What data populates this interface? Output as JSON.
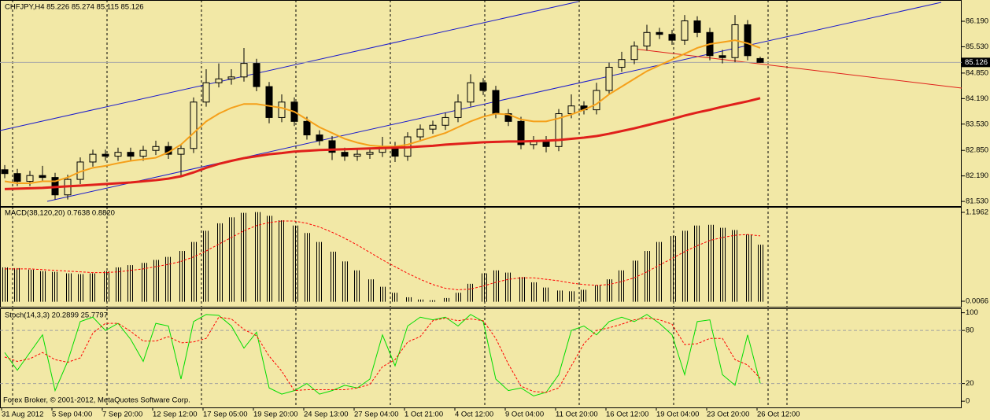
{
  "chart_data": [
    {
      "type": "candlestick",
      "title": "CHFJPY,H4  85.226 85.274 85.115 85.126",
      "credit": "Forex Broker, © 2001-2012, MetaQuotes Software Corp.",
      "categories": [
        "31 Aug 2012",
        null,
        null,
        null,
        "5 Sep 04:00",
        null,
        null,
        null,
        "7 Sep 20:00",
        null,
        null,
        null,
        "12 Sep 12:00",
        null,
        null,
        null,
        "17 Sep 05:00",
        null,
        null,
        null,
        "19 Sep 20:00",
        null,
        null,
        null,
        "24 Sep 13:00",
        null,
        null,
        null,
        "27 Sep 04:00",
        null,
        null,
        null,
        "1 Oct 21:00",
        null,
        null,
        null,
        "4 Oct 12:00",
        null,
        null,
        null,
        "9 Oct 04:00",
        null,
        null,
        null,
        "11 Oct 20:00",
        null,
        null,
        null,
        "16 Oct 12:00",
        null,
        null,
        null,
        "19 Oct 04:00",
        null,
        null,
        null,
        "23 Oct 20:00",
        null,
        null,
        null,
        "26 Oct 12:00"
      ],
      "open": [
        82.35,
        82.25,
        82.05,
        82.2,
        82.15,
        81.7,
        82.1,
        82.55,
        82.75,
        82.7,
        82.8,
        82.7,
        82.85,
        82.95,
        82.75,
        82.9,
        84.1,
        84.6,
        84.7,
        84.75,
        85.1,
        84.5,
        83.7,
        84.1,
        83.6,
        83.25,
        83.1,
        82.8,
        82.7,
        82.75,
        82.8,
        82.95,
        82.7,
        83.2,
        83.4,
        83.5,
        83.7,
        84.1,
        84.6,
        84.4,
        83.8,
        83.6,
        83.0,
        83.1,
        82.95,
        83.8,
        84.0,
        83.9,
        84.4,
        85.0,
        85.2,
        85.55,
        85.9,
        85.85,
        85.7,
        86.2,
        85.9,
        85.3,
        85.25,
        86.1,
        85.226
      ],
      "high": [
        82.47,
        82.37,
        82.32,
        82.45,
        82.27,
        82.22,
        82.67,
        82.87,
        82.87,
        82.92,
        82.92,
        82.97,
        83.1,
        83.07,
        83.02,
        84.22,
        84.95,
        85.1,
        84.95,
        85.5,
        85.22,
        84.62,
        84.3,
        84.22,
        83.72,
        83.37,
        83.22,
        82.92,
        82.87,
        82.92,
        83.2,
        83.07,
        83.32,
        83.52,
        83.62,
        83.82,
        84.3,
        84.82,
        84.72,
        84.52,
        83.92,
        83.72,
        83.22,
        83.22,
        83.92,
        84.3,
        84.12,
        84.6,
        85.12,
        85.4,
        85.67,
        86.1,
        86.02,
        85.97,
        86.35,
        86.32,
        86.02,
        85.45,
        86.35,
        86.22,
        85.274
      ],
      "low": [
        82.13,
        81.93,
        81.93,
        82.03,
        81.58,
        81.58,
        81.98,
        82.43,
        82.58,
        82.58,
        82.58,
        82.58,
        82.73,
        82.63,
        82.2,
        82.78,
        83.98,
        84.48,
        84.55,
        84.63,
        84.38,
        83.55,
        83.58,
        83.48,
        83.13,
        82.98,
        82.6,
        82.58,
        82.58,
        82.63,
        82.68,
        82.55,
        82.58,
        83.08,
        83.28,
        83.38,
        83.58,
        83.98,
        84.28,
        83.68,
        83.48,
        82.88,
        82.88,
        82.8,
        82.83,
        83.68,
        83.78,
        83.78,
        84.28,
        84.88,
        85.08,
        85.43,
        85.73,
        85.58,
        85.58,
        85.78,
        85.18,
        85.1,
        85.13,
        85.18,
        85.115
      ],
      "close": [
        82.25,
        82.05,
        82.2,
        82.15,
        81.7,
        82.1,
        82.55,
        82.75,
        82.7,
        82.8,
        82.7,
        82.85,
        82.95,
        82.75,
        82.9,
        84.1,
        84.6,
        84.7,
        84.75,
        85.1,
        84.5,
        83.7,
        84.1,
        83.6,
        83.25,
        83.1,
        82.8,
        82.7,
        82.75,
        82.8,
        82.95,
        82.7,
        83.2,
        83.4,
        83.5,
        83.7,
        84.1,
        84.6,
        84.4,
        83.8,
        83.6,
        83.0,
        83.1,
        82.95,
        83.8,
        84.0,
        83.9,
        84.4,
        85.0,
        85.2,
        85.55,
        85.9,
        85.85,
        85.7,
        86.2,
        85.9,
        85.3,
        85.25,
        86.1,
        85.3,
        85.126
      ],
      "overlays": [
        {
          "color": "#f5a01a",
          "values": [
            82.05,
            82.0,
            82.0,
            82.05,
            82.05,
            82.15,
            82.3,
            82.4,
            82.45,
            82.52,
            82.58,
            82.62,
            82.66,
            82.8,
            83.0,
            83.3,
            83.6,
            83.8,
            83.95,
            84.05,
            84.05,
            84.0,
            83.95,
            83.85,
            83.65,
            83.45,
            83.3,
            83.15,
            83.05,
            82.98,
            82.95,
            82.95,
            83.0,
            83.1,
            83.2,
            83.3,
            83.45,
            83.6,
            83.72,
            83.8,
            83.78,
            83.65,
            83.6,
            83.6,
            83.68,
            83.78,
            83.9,
            84.05,
            84.3,
            84.5,
            84.7,
            84.9,
            85.05,
            85.2,
            85.35,
            85.5,
            85.6,
            85.65,
            85.7,
            85.62,
            85.5
          ]
        },
        {
          "color": "#e0201b",
          "values": [
            81.85,
            81.86,
            81.87,
            81.88,
            81.9,
            81.92,
            81.94,
            81.96,
            81.98,
            82.0,
            82.02,
            82.05,
            82.08,
            82.12,
            82.18,
            82.28,
            82.4,
            82.5,
            82.58,
            82.65,
            82.7,
            82.75,
            82.78,
            82.82,
            82.84,
            82.86,
            82.87,
            82.88,
            82.89,
            82.9,
            82.91,
            82.92,
            82.93,
            82.95,
            82.97,
            83.0,
            83.02,
            83.04,
            83.06,
            83.07,
            83.08,
            83.08,
            83.09,
            83.1,
            83.12,
            83.15,
            83.18,
            83.22,
            83.28,
            83.35,
            83.42,
            83.5,
            83.58,
            83.66,
            83.75,
            83.83,
            83.9,
            83.98,
            84.05,
            84.12,
            84.2
          ]
        }
      ],
      "last_price": 85.126,
      "ylim": [
        81.41,
        86.74
      ],
      "yticks": [
        {
          "value": 86.19,
          "label": "86.190"
        },
        {
          "value": 85.53,
          "label": "85.530"
        },
        {
          "value": 84.85,
          "label": "84.850"
        },
        {
          "value": 84.19,
          "label": "84.190"
        },
        {
          "value": 83.53,
          "label": "83.530"
        },
        {
          "value": 82.85,
          "label": "82.850"
        },
        {
          "value": 82.19,
          "label": "82.190"
        },
        {
          "value": 81.53,
          "label": "81.530"
        }
      ],
      "grid": true
    },
    {
      "type": "macd",
      "title": "MACD(38,120,20) 0.7638 0.8820",
      "series": [
        {
          "color": "#000000",
          "values": [
            0.46,
            0.45,
            0.43,
            0.41,
            0.4,
            0.38,
            0.37,
            0.38,
            0.41,
            0.46,
            0.49,
            0.52,
            0.56,
            0.6,
            0.68,
            0.8,
            0.95,
            1.05,
            1.13,
            1.19,
            1.2,
            1.15,
            1.09,
            1.02,
            0.92,
            0.8,
            0.67,
            0.54,
            0.42,
            0.3,
            0.2,
            0.12,
            0.06,
            0.03,
            0.02,
            0.05,
            0.12,
            0.24,
            0.38,
            0.42,
            0.39,
            0.33,
            0.26,
            0.19,
            0.15,
            0.14,
            0.16,
            0.22,
            0.3,
            0.42,
            0.55,
            0.68,
            0.8,
            0.88,
            0.95,
            1.02,
            1.03,
            0.99,
            0.96,
            0.9,
            0.7638
          ]
        },
        {
          "color": "#ff0000",
          "values": [
            0.44,
            0.44,
            0.44,
            0.43,
            0.42,
            0.41,
            0.4,
            0.39,
            0.39,
            0.4,
            0.42,
            0.44,
            0.47,
            0.5,
            0.54,
            0.6,
            0.68,
            0.77,
            0.86,
            0.95,
            1.02,
            1.06,
            1.08,
            1.08,
            1.05,
            1.0,
            0.93,
            0.85,
            0.76,
            0.66,
            0.56,
            0.47,
            0.38,
            0.3,
            0.23,
            0.18,
            0.16,
            0.17,
            0.21,
            0.26,
            0.3,
            0.32,
            0.32,
            0.3,
            0.28,
            0.25,
            0.23,
            0.22,
            0.23,
            0.27,
            0.32,
            0.4,
            0.49,
            0.58,
            0.67,
            0.75,
            0.82,
            0.86,
            0.89,
            0.9,
            0.882
          ]
        }
      ],
      "ylim": [
        -0.067,
        1.27
      ],
      "yticks": [
        1.1962,
        0.0066
      ]
    },
    {
      "type": "stochastic",
      "title": "Stoch(14,3,3) 20.2899 25.7797",
      "series": [
        {
          "color": "#00dd00",
          "values": [
            55,
            35,
            55,
            75,
            12,
            45,
            90,
            95,
            80,
            88,
            70,
            45,
            88,
            85,
            25,
            90,
            98,
            97,
            85,
            60,
            78,
            15,
            8,
            12,
            20,
            8,
            12,
            18,
            15,
            25,
            75,
            40,
            85,
            95,
            92,
            95,
            85,
            98,
            90,
            25,
            12,
            15,
            6,
            10,
            30,
            80,
            85,
            75,
            90,
            95,
            90,
            98,
            88,
            75,
            30,
            90,
            92,
            30,
            18,
            75,
            20.2899
          ]
        },
        {
          "color": "#ff0000",
          "values": [
            50,
            45,
            48,
            55,
            47,
            44,
            49,
            77,
            88,
            88,
            79,
            68,
            68,
            73,
            66,
            67,
            71,
            95,
            93,
            81,
            74,
            51,
            34,
            12,
            13,
            13,
            13,
            13,
            15,
            19,
            39,
            47,
            67,
            73,
            91,
            94,
            91,
            93,
            91,
            71,
            42,
            17,
            11,
            10,
            15,
            40,
            65,
            80,
            83,
            87,
            92,
            94,
            92,
            87,
            64,
            65,
            71,
            71,
            47,
            41,
            25.7797
          ]
        }
      ],
      "ylim": [
        -7,
        105
      ],
      "yticks": [
        0,
        20,
        80,
        100
      ]
    }
  ]
}
